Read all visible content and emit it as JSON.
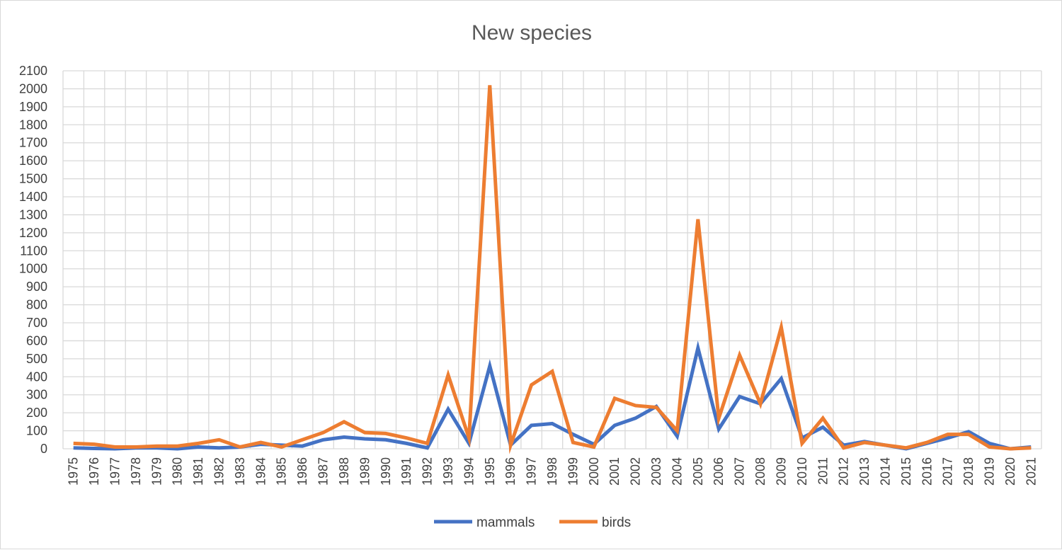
{
  "chart_data": {
    "type": "line",
    "title": "New species",
    "xlabel": "",
    "ylabel": "",
    "ylim": [
      0,
      2100
    ],
    "ytick_step": 100,
    "grid": true,
    "legend_position": "bottom",
    "x": [
      "1975",
      "1976",
      "1977",
      "1978",
      "1979",
      "1980",
      "1981",
      "1982",
      "1983",
      "1984",
      "1985",
      "1986",
      "1987",
      "1988",
      "1989",
      "1990",
      "1991",
      "1992",
      "1993",
      "1994",
      "1995",
      "1996",
      "1997",
      "1998",
      "1999",
      "2000",
      "2001",
      "2002",
      "2003",
      "2004",
      "2005",
      "2006",
      "2007",
      "2008",
      "2009",
      "2010",
      "2011",
      "2012",
      "2013",
      "2014",
      "2015",
      "2016",
      "2017",
      "2018",
      "2019",
      "2020",
      "2021"
    ],
    "series": [
      {
        "name": "mammals",
        "color": "#4472c4",
        "values": [
          5,
          2,
          0,
          5,
          5,
          0,
          10,
          5,
          10,
          25,
          20,
          15,
          50,
          65,
          55,
          50,
          30,
          5,
          220,
          30,
          460,
          20,
          130,
          140,
          80,
          25,
          130,
          170,
          235,
          70,
          560,
          110,
          290,
          250,
          390,
          60,
          120,
          20,
          40,
          20,
          0,
          30,
          60,
          95,
          30,
          0,
          10
        ]
      },
      {
        "name": "birds",
        "color": "#ed7d31",
        "values": [
          30,
          25,
          10,
          10,
          15,
          15,
          30,
          50,
          10,
          35,
          10,
          50,
          90,
          150,
          90,
          85,
          60,
          30,
          410,
          60,
          2020,
          20,
          355,
          430,
          35,
          10,
          280,
          240,
          230,
          100,
          1275,
          170,
          520,
          250,
          675,
          30,
          170,
          5,
          35,
          20,
          5,
          35,
          80,
          80,
          10,
          0,
          5
        ]
      }
    ]
  }
}
